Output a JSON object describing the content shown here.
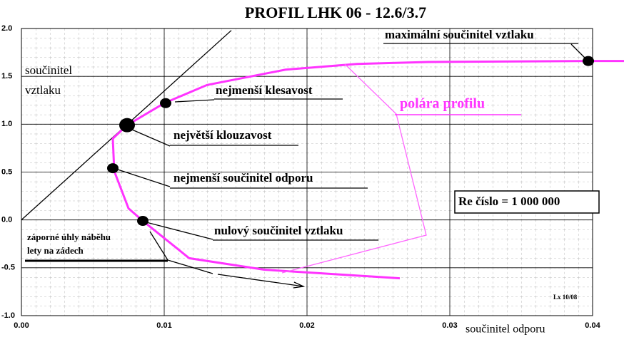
{
  "chart_data": {
    "type": "line",
    "title": "PROFIL  LHK  06 - 12.6/3.7",
    "y_label": [
      "součinitel",
      "vztlaku"
    ],
    "x_label": "součinitel  odporu",
    "xlim": [
      0,
      0.04
    ],
    "ylim": [
      -1,
      2
    ],
    "xticks": [
      {
        "value": 0,
        "label": "0.00"
      },
      0.01,
      0.02,
      0.03,
      0.04
    ],
    "yticks": [
      {
        "value": 2,
        "label": "2.0"
      },
      1.5,
      {
        "value": 1,
        "label": "1.0"
      },
      0.5,
      {
        "value": 0,
        "label": "0.0"
      },
      -0.5,
      {
        "value": -1,
        "label": "-1.0"
      }
    ],
    "grid": true,
    "series": [
      {
        "name": "polára  profilu",
        "color": "#ff33ff",
        "x": [
          0.0265,
          0.017,
          0.01175,
          0.01,
          0.0085,
          0.0075,
          0.0065,
          0.0064,
          0.0074,
          0.01,
          0.013,
          0.0185,
          0.0235,
          0.0285,
          0.0397,
          0.0422
        ],
        "values": [
          -0.61,
          -0.52,
          -0.4,
          -0.19,
          -0.01,
          0.12,
          0.51,
          0.85,
          0.99,
          1.22,
          1.41,
          1.57,
          1.63,
          1.65,
          1.66,
          1.66
        ]
      }
    ],
    "tangent": {
      "x": [
        0,
        0.0147
      ],
      "values": [
        0,
        1.98
      ],
      "color": "#000000"
    },
    "points": [
      {
        "text": "maximální součinitel vztlaku",
        "x": 0.0397,
        "y": 1.66
      },
      {
        "text": "nejmenší klesavost",
        "x": 0.0101,
        "y": 1.22
      },
      {
        "text": "největší klouzavost",
        "x": 0.0074,
        "y": 0.99
      },
      {
        "text": "nejmenší součinitel odporu",
        "x": 0.0064,
        "y": 0.54
      },
      {
        "text": "nulový součinitel vztlaku",
        "x": 0.0085,
        "y": -0.01
      }
    ],
    "negative_note": [
      "záporné úhly náběhu",
      "lety na zádech"
    ],
    "re_note": "Re číslo = 1 000 000",
    "signature": "Lx 10/08"
  }
}
